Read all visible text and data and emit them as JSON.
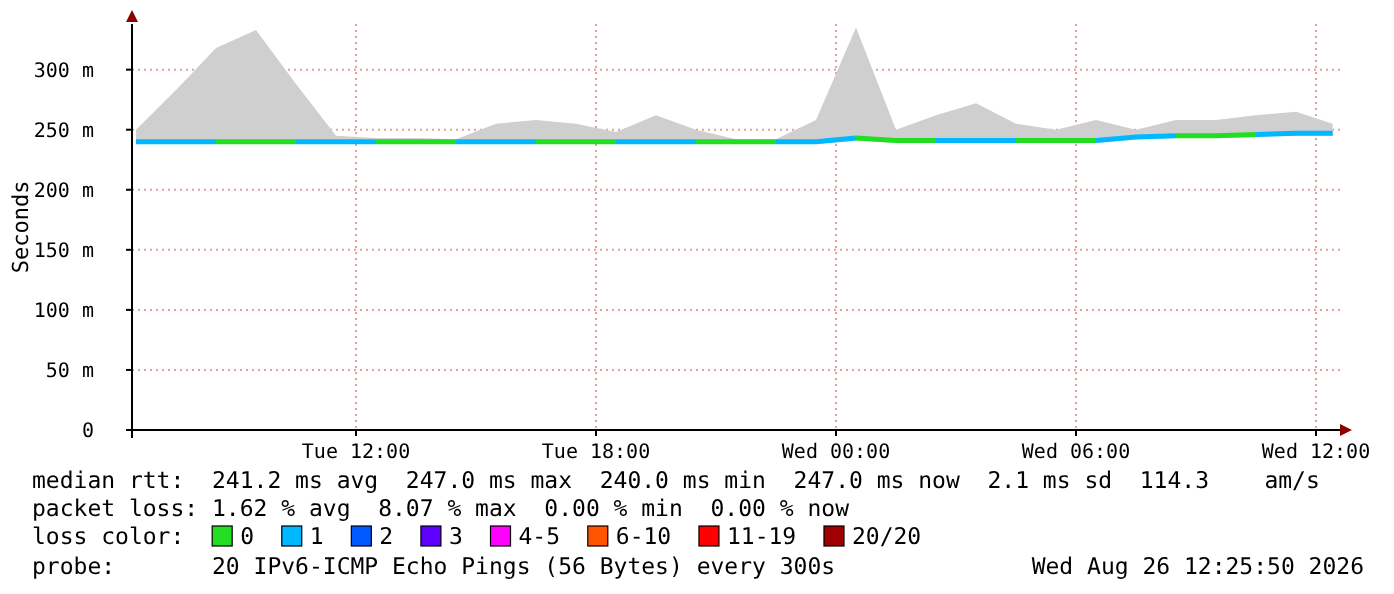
{
  "chart_data": {
    "type": "line",
    "ylabel": "Seconds",
    "x": [
      "2026-08-25T06:30",
      "2026-08-25T07:30",
      "2026-08-25T08:30",
      "2026-08-25T09:30",
      "2026-08-25T10:30",
      "2026-08-25T11:30",
      "2026-08-25T12:30",
      "2026-08-25T13:30",
      "2026-08-25T14:30",
      "2026-08-25T15:30",
      "2026-08-25T16:30",
      "2026-08-25T17:30",
      "2026-08-25T18:30",
      "2026-08-25T19:30",
      "2026-08-25T20:30",
      "2026-08-25T21:30",
      "2026-08-25T22:30",
      "2026-08-25T23:30",
      "2026-08-26T00:30",
      "2026-08-26T01:30",
      "2026-08-26T02:30",
      "2026-08-26T03:30",
      "2026-08-26T04:30",
      "2026-08-26T05:30",
      "2026-08-26T06:30",
      "2026-08-26T07:30",
      "2026-08-26T08:30",
      "2026-08-26T09:30",
      "2026-08-26T10:30",
      "2026-08-26T11:30",
      "2026-08-26T12:25"
    ],
    "series": [
      {
        "name": "0",
        "color": "#22dd22",
        "values": [
          null,
          null,
          240,
          240,
          240,
          null,
          240,
          240,
          240,
          null,
          240,
          240,
          240,
          null,
          240,
          240,
          240,
          null,
          243,
          241,
          241,
          null,
          241,
          241,
          241,
          null,
          245,
          245,
          246,
          null,
          null
        ],
        "lower": [
          238,
          238,
          238,
          238,
          238,
          238,
          238,
          238,
          238,
          238,
          238,
          238,
          238,
          238,
          238,
          238,
          238,
          238,
          241,
          239,
          239,
          239,
          239,
          239,
          239,
          242,
          243,
          243,
          244,
          245,
          245
        ],
        "upper": [
          250,
          283,
          318,
          333,
          288,
          245,
          243,
          243,
          242,
          255,
          258,
          255,
          248,
          262,
          250,
          242,
          242,
          258,
          335,
          250,
          262,
          272,
          255,
          250,
          258,
          250,
          258,
          258,
          262,
          265,
          255
        ]
      },
      {
        "name": "1",
        "color": "#00b8ff",
        "values": [
          240,
          240,
          240,
          null,
          240,
          240,
          240,
          null,
          240,
          240,
          240,
          null,
          240,
          240,
          240,
          null,
          240,
          240,
          243,
          null,
          241,
          241,
          241,
          null,
          241,
          244,
          245,
          null,
          246,
          247,
          247
        ]
      }
    ],
    "xlim": [
      "2026-08-25T06:24",
      "2026-08-26T12:36"
    ],
    "xticks": [
      {
        "value": "2026-08-25T12:00",
        "label": "Tue 12:00"
      },
      {
        "value": "2026-08-25T18:00",
        "label": "Tue 18:00"
      },
      {
        "value": "2026-08-26T00:00",
        "label": "Wed 00:00"
      },
      {
        "value": "2026-08-26T06:00",
        "label": "Wed 06:00"
      },
      {
        "value": "2026-08-26T12:00",
        "label": "Wed 12:00"
      }
    ],
    "ylim": [
      0,
      338
    ],
    "yticks": [
      0,
      {
        "value": 50,
        "label": "50 m"
      },
      {
        "value": 100,
        "label": "100 m"
      },
      {
        "value": 150,
        "label": "150 m"
      },
      {
        "value": 200,
        "label": "200 m"
      },
      {
        "value": 250,
        "label": "250 m"
      },
      {
        "value": 300,
        "label": "300 m"
      }
    ],
    "grid": true,
    "legend": "bottom",
    "legend_title": "loss color:",
    "annotations": [
      "median rtt:  241.2 ms avg  247.0 ms max  240.0 ms min  247.0 ms now  2.1 ms sd  114.3    am/s",
      "packet loss: 1.62 % avg  8.07 % max  0.00 % min  0.00 % now",
      "probe:       20 IPv6-ICMP Echo Pings (56 Bytes) every 300s",
      "Wed Aug 26 12:25:50 2026",
      "2",
      "3",
      "4-5",
      "6-10",
      "11-19",
      "20/20"
    ]
  }
}
